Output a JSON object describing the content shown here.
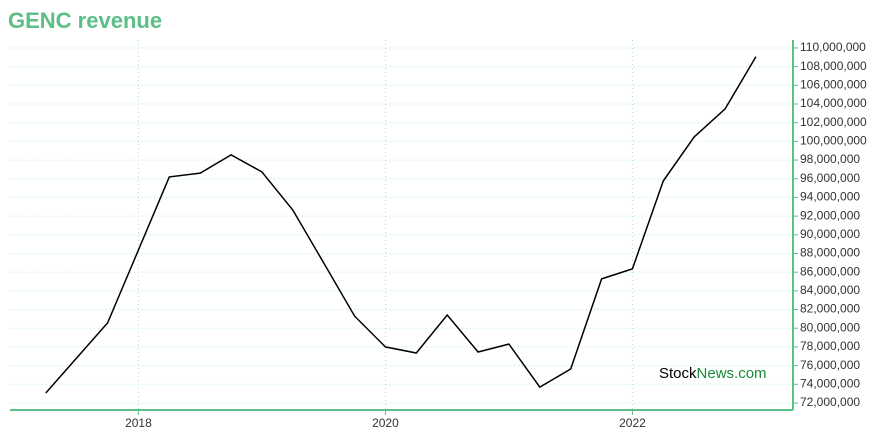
{
  "chart_data": {
    "type": "line",
    "title": "GENC revenue",
    "x": [
      2017.25,
      2017.75,
      2018.25,
      2018.5,
      2018.75,
      2019.0,
      2019.25,
      2019.5,
      2019.75,
      2020.0,
      2020.25,
      2020.5,
      2020.75,
      2021.0,
      2021.25,
      2021.5,
      2021.75,
      2022.0,
      2022.25,
      2022.5,
      2022.75,
      2023.0
    ],
    "series": [
      {
        "color": "#000000",
        "values": [
          73070000,
          80570000,
          96200000,
          96600000,
          98550000,
          96730000,
          92660000,
          86990000,
          81300000,
          78000000,
          77350000,
          81420000,
          77460000,
          78300000,
          73700000,
          75640000,
          85280000,
          86350000,
          95770000,
          100480000,
          103480000,
          109050000
        ]
      }
    ],
    "xlim": [
      2016.96,
      2023.3
    ],
    "xticks": [
      2018,
      2020,
      2022
    ],
    "ylim": [
      71250000,
      110850000
    ],
    "yticks": [
      {
        "value": 72000000,
        "label": "72,000,000"
      },
      {
        "value": 74000000,
        "label": "74,000,000"
      },
      {
        "value": 76000000,
        "label": "76,000,000"
      },
      {
        "value": 78000000,
        "label": "78,000,000"
      },
      {
        "value": 80000000,
        "label": "80,000,000"
      },
      {
        "value": 82000000,
        "label": "82,000,000"
      },
      {
        "value": 84000000,
        "label": "84,000,000"
      },
      {
        "value": 86000000,
        "label": "86,000,000"
      },
      {
        "value": 88000000,
        "label": "88,000,000"
      },
      {
        "value": 90000000,
        "label": "90,000,000"
      },
      {
        "value": 92000000,
        "label": "92,000,000"
      },
      {
        "value": 94000000,
        "label": "94,000,000"
      },
      {
        "value": 96000000,
        "label": "96,000,000"
      },
      {
        "value": 98000000,
        "label": "98,000,000"
      },
      {
        "value": 100000000,
        "label": "100,000,000"
      },
      {
        "value": 102000000,
        "label": "102,000,000"
      },
      {
        "value": 104000000,
        "label": "104,000,000"
      },
      {
        "value": 106000000,
        "label": "106,000,000"
      },
      {
        "value": 108000000,
        "label": "108,000,000"
      },
      {
        "value": 110000000,
        "label": "110,000,000"
      }
    ],
    "grid": true,
    "axis_color": "#5cbf85",
    "watermark": [
      "Stock",
      "News.com"
    ]
  }
}
